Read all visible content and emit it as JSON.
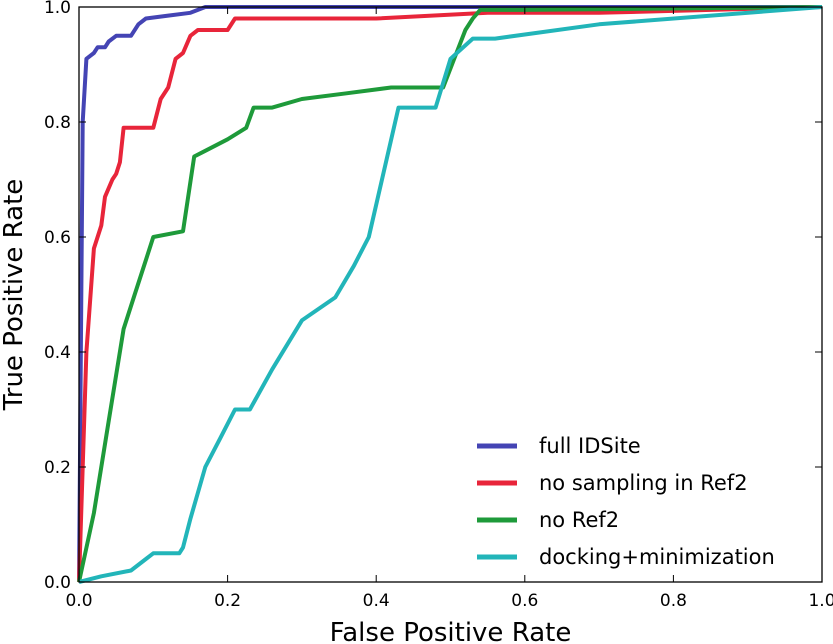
{
  "chart_data": {
    "type": "line",
    "xlabel": "False Positive Rate",
    "ylabel": "True Positive Rate",
    "xlim": [
      0.0,
      1.0
    ],
    "ylim": [
      0.0,
      1.0
    ],
    "xticks": [
      "0.0",
      "0.2",
      "0.4",
      "0.6",
      "0.8",
      "1.0"
    ],
    "yticks": [
      "0.0",
      "0.2",
      "0.4",
      "0.6",
      "0.8",
      "1.0"
    ],
    "grid": false,
    "legend": "bottom-right",
    "series": [
      {
        "name": "full IDSite",
        "color": "#4444b4",
        "points": [
          [
            0.0,
            0.0
          ],
          [
            0.005,
            0.8
          ],
          [
            0.01,
            0.91
          ],
          [
            0.015,
            0.915
          ],
          [
            0.02,
            0.92
          ],
          [
            0.025,
            0.93
          ],
          [
            0.035,
            0.93
          ],
          [
            0.04,
            0.94
          ],
          [
            0.05,
            0.95
          ],
          [
            0.07,
            0.95
          ],
          [
            0.08,
            0.97
          ],
          [
            0.09,
            0.98
          ],
          [
            0.12,
            0.985
          ],
          [
            0.15,
            0.99
          ],
          [
            0.17,
            1.0
          ],
          [
            1.0,
            1.0
          ]
        ]
      },
      {
        "name": "no sampling in Ref2",
        "color": "#e8253a",
        "points": [
          [
            0.0,
            0.0
          ],
          [
            0.01,
            0.4
          ],
          [
            0.02,
            0.58
          ],
          [
            0.03,
            0.62
          ],
          [
            0.035,
            0.67
          ],
          [
            0.045,
            0.7
          ],
          [
            0.05,
            0.71
          ],
          [
            0.055,
            0.73
          ],
          [
            0.06,
            0.79
          ],
          [
            0.1,
            0.79
          ],
          [
            0.11,
            0.84
          ],
          [
            0.12,
            0.86
          ],
          [
            0.13,
            0.91
          ],
          [
            0.14,
            0.92
          ],
          [
            0.15,
            0.95
          ],
          [
            0.16,
            0.96
          ],
          [
            0.2,
            0.96
          ],
          [
            0.21,
            0.98
          ],
          [
            0.4,
            0.98
          ],
          [
            0.55,
            0.99
          ],
          [
            0.7,
            0.99
          ],
          [
            1.0,
            1.0
          ]
        ]
      },
      {
        "name": "no Ref2",
        "color": "#1e9a3a",
        "points": [
          [
            0.0,
            0.0
          ],
          [
            0.02,
            0.12
          ],
          [
            0.04,
            0.28
          ],
          [
            0.06,
            0.44
          ],
          [
            0.075,
            0.5
          ],
          [
            0.09,
            0.56
          ],
          [
            0.1,
            0.6
          ],
          [
            0.14,
            0.61
          ],
          [
            0.155,
            0.74
          ],
          [
            0.17,
            0.75
          ],
          [
            0.2,
            0.77
          ],
          [
            0.225,
            0.79
          ],
          [
            0.235,
            0.825
          ],
          [
            0.26,
            0.825
          ],
          [
            0.3,
            0.84
          ],
          [
            0.36,
            0.85
          ],
          [
            0.42,
            0.86
          ],
          [
            0.49,
            0.86
          ],
          [
            0.505,
            0.91
          ],
          [
            0.52,
            0.96
          ],
          [
            0.53,
            0.98
          ],
          [
            0.54,
            0.995
          ],
          [
            0.6,
            0.995
          ],
          [
            1.0,
            1.0
          ]
        ]
      },
      {
        "name": "docking+minimization",
        "color": "#22b5b9",
        "points": [
          [
            0.0,
            0.0
          ],
          [
            0.03,
            0.01
          ],
          [
            0.07,
            0.02
          ],
          [
            0.09,
            0.04
          ],
          [
            0.1,
            0.05
          ],
          [
            0.135,
            0.05
          ],
          [
            0.14,
            0.06
          ],
          [
            0.15,
            0.11
          ],
          [
            0.17,
            0.2
          ],
          [
            0.19,
            0.25
          ],
          [
            0.21,
            0.3
          ],
          [
            0.23,
            0.3
          ],
          [
            0.26,
            0.37
          ],
          [
            0.3,
            0.455
          ],
          [
            0.345,
            0.495
          ],
          [
            0.37,
            0.55
          ],
          [
            0.39,
            0.6
          ],
          [
            0.43,
            0.825
          ],
          [
            0.48,
            0.825
          ],
          [
            0.5,
            0.91
          ],
          [
            0.53,
            0.945
          ],
          [
            0.56,
            0.945
          ],
          [
            0.7,
            0.97
          ],
          [
            1.0,
            1.0
          ]
        ]
      }
    ]
  }
}
